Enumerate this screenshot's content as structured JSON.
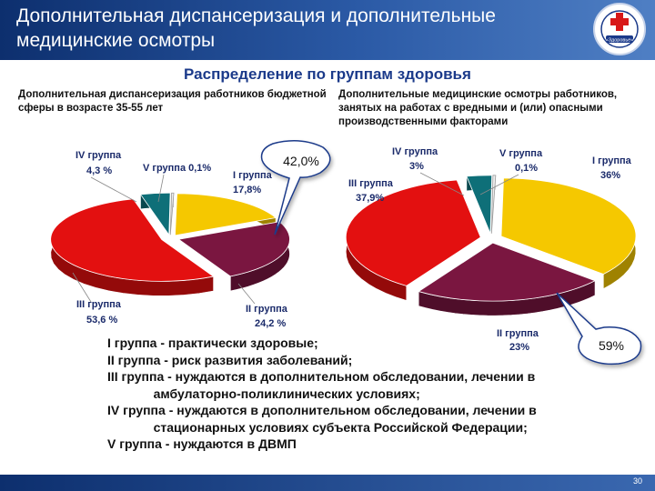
{
  "header": {
    "title": "Дополнительная диспансеризация и дополнительные медицинские осмотры",
    "logo_text": "«Здоровье»"
  },
  "subtitle": "Распределение по группам здоровья",
  "left_desc": "Дополнительная диспансеризация работников бюджетной сферы в возрасте 35-55 лет",
  "right_desc": "Дополнительные медицинские осмотры работников, занятых на работах с вредными и (или) опасными производственными факторами",
  "colors": {
    "I": "#f5c800",
    "II": "#7a1640",
    "III": "#e31010",
    "IV": "#0e6f78",
    "V": "#eeeeee"
  },
  "chart_data": [
    {
      "type": "pie",
      "slices": [
        {
          "key": "I",
          "group": "I группа",
          "value_label": "17,8%",
          "value": 17.8
        },
        {
          "key": "II",
          "group": "II группа",
          "value_label": "24,2 %",
          "value": 24.2
        },
        {
          "key": "III",
          "group": "III группа",
          "value_label": "53,6 %",
          "value": 53.6
        },
        {
          "key": "IV",
          "group": "IV группа",
          "value_label": "4,3 %",
          "value": 4.3
        },
        {
          "key": "V",
          "group": "V группа 0,1%",
          "value_label": "",
          "value": 0.1
        }
      ],
      "callout": "42,0%"
    },
    {
      "type": "pie",
      "slices": [
        {
          "key": "I",
          "group": "I группа",
          "value_label": "36%",
          "value": 36
        },
        {
          "key": "II",
          "group": "II группа",
          "value_label": "23%",
          "value": 23
        },
        {
          "key": "III",
          "group": "III группа",
          "value_label": "37,9%",
          "value": 37.9
        },
        {
          "key": "IV",
          "group": "IV группа",
          "value_label": "3%",
          "value": 3
        },
        {
          "key": "V",
          "group": "V группа",
          "value_label": "0,1%",
          "value": 0.1
        }
      ],
      "callout": "59%"
    }
  ],
  "legend": [
    "I группа - практически здоровые;",
    "II группа - риск развития заболеваний;",
    "III группа - нуждаются в дополнительном обследовании, лечении в\n             амбулаторно-поликлинических условиях;",
    "IV группа - нуждаются в дополнительном обследовании, лечении в\n             стационарных условиях субъекта Российской Федерации;",
    "V группа - нуждаются в ДВМП"
  ],
  "page_number": "30"
}
